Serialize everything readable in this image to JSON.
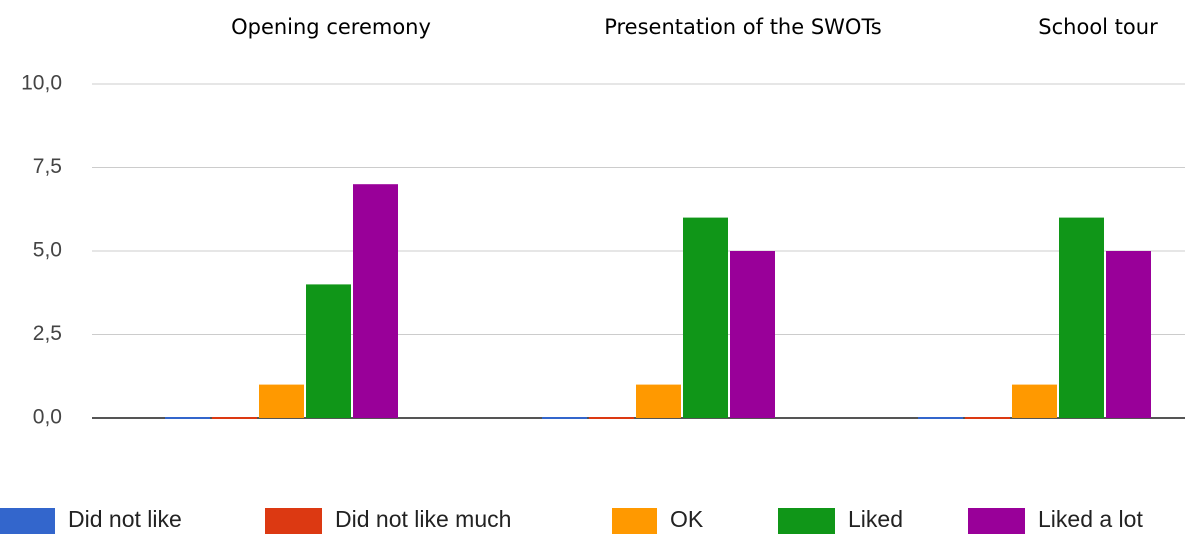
{
  "chart_data": {
    "type": "bar",
    "categories": [
      "Opening ceremony",
      "Presentation of the SWOTs",
      "School tour"
    ],
    "series": [
      {
        "name": "Did not like",
        "color": "#3366cc",
        "values": [
          0,
          0,
          0
        ]
      },
      {
        "name": "Did not like much",
        "color": "#dc3912",
        "values": [
          0,
          0,
          0
        ]
      },
      {
        "name": "OK",
        "color": "#ff9900",
        "values": [
          1,
          1,
          1
        ]
      },
      {
        "name": "Liked",
        "color": "#109618",
        "values": [
          4,
          6,
          6
        ]
      },
      {
        "name": "Liked a lot",
        "color": "#990099",
        "values": [
          7,
          5,
          5
        ]
      }
    ],
    "ylim": [
      0,
      10
    ],
    "yticks": [
      {
        "value": 0,
        "label": "0,0"
      },
      {
        "value": 2.5,
        "label": "2,5"
      },
      {
        "value": 5,
        "label": "5,0"
      },
      {
        "value": 7.5,
        "label": "7,5"
      },
      {
        "value": 10,
        "label": "10,0"
      }
    ],
    "grid": true,
    "legend": "bottom"
  }
}
